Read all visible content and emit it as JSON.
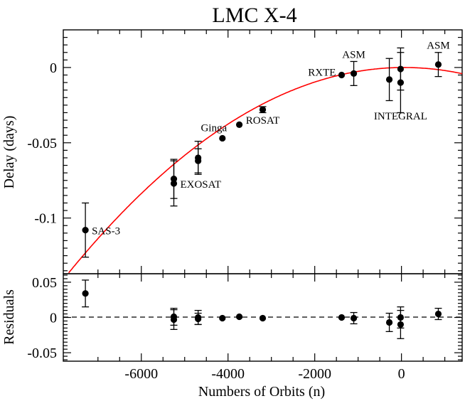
{
  "chart_data": [
    {
      "type": "scatter",
      "panel": "delay",
      "title": "LMC X-4",
      "xlabel": "Numbers of Orbits (n)",
      "ylabel": "Delay (days)",
      "xlim": [
        -7800,
        1400
      ],
      "ylim": [
        -0.137,
        0.025
      ],
      "x_ticks": [
        -6000,
        -4000,
        -2000,
        0
      ],
      "x_tick_labels": [
        "-6000",
        "-4000",
        "-2000",
        "0"
      ],
      "y_ticks": [
        -0.1,
        -0.05,
        0
      ],
      "y_tick_labels": [
        "-0.1",
        "-0.05",
        "0"
      ],
      "fit_curve": {
        "color": "#ff0000",
        "model": "quadratic",
        "peak_x": 60,
        "peak_y": 0.0,
        "curvature": -2.28e-09
      },
      "points": [
        {
          "x": -7290,
          "y": -0.108,
          "err": 0.018
        },
        {
          "x": -5250,
          "y": -0.074,
          "err": 0.013
        },
        {
          "x": -5250,
          "y": -0.077,
          "err": 0.015
        },
        {
          "x": -4690,
          "y": -0.06,
          "err": 0.011
        },
        {
          "x": -4690,
          "y": -0.062,
          "err": 0.008
        },
        {
          "x": -4130,
          "y": -0.047,
          "err": 0
        },
        {
          "x": -3740,
          "y": -0.038,
          "err": 0
        },
        {
          "x": -3200,
          "y": -0.028,
          "err": 0.002
        },
        {
          "x": -1380,
          "y": -0.005,
          "err": 0
        },
        {
          "x": -1100,
          "y": -0.004,
          "err": 0.008
        },
        {
          "x": -280,
          "y": -0.008,
          "err": 0.014
        },
        {
          "x": -20,
          "y": -0.001,
          "err": 0.014
        },
        {
          "x": -20,
          "y": -0.01,
          "err": 0.02
        },
        {
          "x": 850,
          "y": 0.002,
          "err": 0.008
        }
      ],
      "annotations": [
        {
          "text": "SAS-3",
          "x": -7290,
          "y": -0.108,
          "anchor": "right"
        },
        {
          "text": "EXOSAT",
          "x": -5250,
          "y": -0.077,
          "anchor": "right"
        },
        {
          "text": "Ginga",
          "x": -4130,
          "y": -0.047,
          "anchor": "above"
        },
        {
          "text": "ROSAT",
          "x": -3200,
          "y": -0.028,
          "anchor": "below"
        },
        {
          "text": "RXTE",
          "x": -1380,
          "y": -0.005,
          "anchor": "left"
        },
        {
          "text": "ASM",
          "x": -1100,
          "y": -0.004,
          "anchor": "above"
        },
        {
          "text": "INTEGRAL",
          "x": -20,
          "y": -0.01,
          "anchor": "below"
        },
        {
          "text": "ASM",
          "x": 850,
          "y": 0.002,
          "anchor": "above"
        }
      ]
    },
    {
      "type": "scatter",
      "panel": "residuals",
      "xlabel": "Numbers of Orbits (n)",
      "ylabel": "Residuals",
      "xlim": [
        -7800,
        1400
      ],
      "ylim": [
        -0.062,
        0.062
      ],
      "y_ticks": [
        -0.05,
        0,
        0.05
      ],
      "y_tick_labels": [
        "-0.05",
        "0",
        "0.05"
      ],
      "zero_line": "dashed",
      "points": [
        {
          "x": -7290,
          "y": 0.034,
          "err": 0.019
        },
        {
          "x": -5250,
          "y": 0.001,
          "err": 0.012
        },
        {
          "x": -5250,
          "y": -0.003,
          "err": 0.014
        },
        {
          "x": -4690,
          "y": 0.0,
          "err": 0.01
        },
        {
          "x": -4690,
          "y": -0.002,
          "err": 0.008
        },
        {
          "x": -4130,
          "y": -0.001,
          "err": 0
        },
        {
          "x": -3740,
          "y": 0.001,
          "err": 0
        },
        {
          "x": -3200,
          "y": -0.001,
          "err": 0
        },
        {
          "x": -1380,
          "y": 0.0,
          "err": 0
        },
        {
          "x": -1100,
          "y": -0.001,
          "err": 0.008
        },
        {
          "x": -280,
          "y": -0.007,
          "err": 0.013
        },
        {
          "x": -20,
          "y": 0.0,
          "err": 0.015
        },
        {
          "x": -20,
          "y": -0.01,
          "err": 0.02
        },
        {
          "x": 850,
          "y": 0.005,
          "err": 0.008
        }
      ]
    }
  ]
}
